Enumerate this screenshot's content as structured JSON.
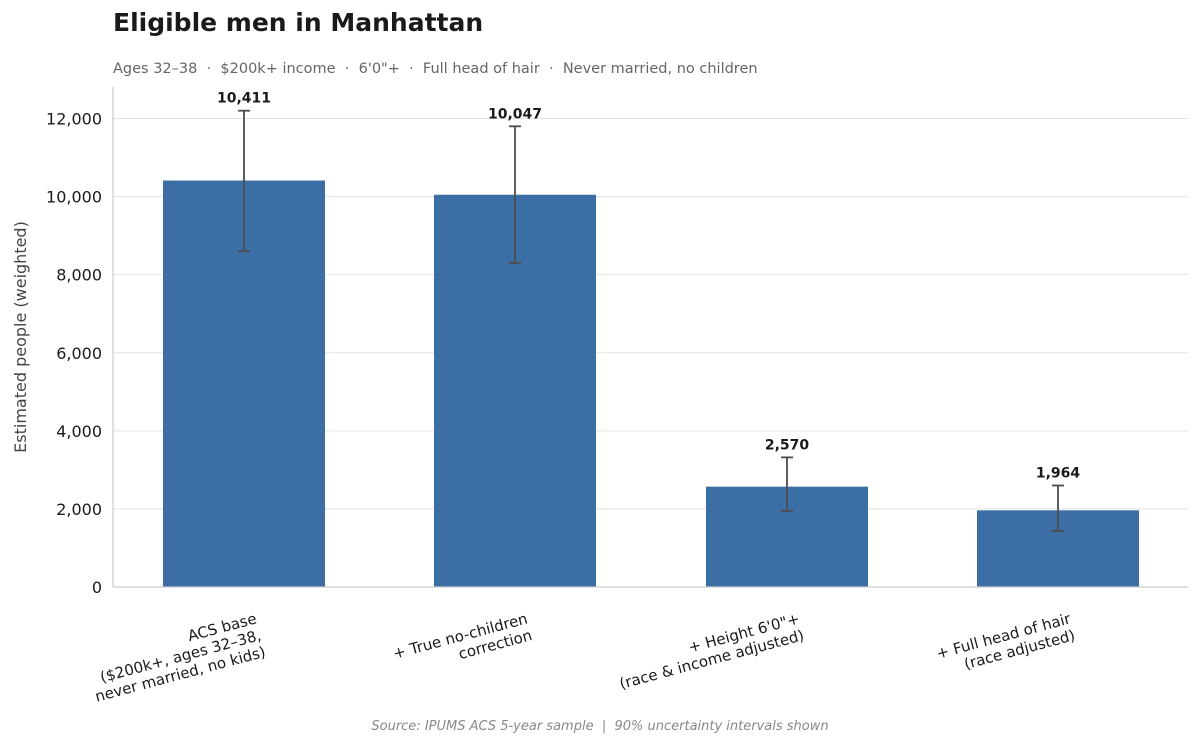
{
  "header": {
    "title": "Eligible men in Manhattan",
    "subtitle": "Ages 32–38  ·  $200k+ income  ·  6'0\"+  ·  Full head of hair  ·  Never married, no children"
  },
  "footer": {
    "source": "Source: IPUMS ACS 5-year sample  |  90% uncertainty intervals shown"
  },
  "colors": {
    "bar": "#3b6ea5",
    "errorbar": "#4d4d4d",
    "grid": "#e3e3e3",
    "axis": "#cccccc"
  },
  "chart_data": {
    "type": "bar",
    "title": "Eligible men in Manhattan",
    "subtitle": "Ages 32–38  ·  $200k+ income  ·  6'0\"+  ·  Full head of hair  ·  Never married, no children",
    "xlabel": "",
    "ylabel": "Estimated people (weighted)",
    "ylim": [
      0,
      12800
    ],
    "yticks": [
      0,
      2000,
      4000,
      6000,
      8000,
      10000,
      12000
    ],
    "ytick_labels": [
      "0",
      "2,000",
      "4,000",
      "6,000",
      "8,000",
      "10,000",
      "12,000"
    ],
    "grid": true,
    "legend": "none",
    "categories": [
      [
        "ACS base",
        "($200k+, ages 32–38,",
        "never married, no kids)"
      ],
      [
        "+ True no-children",
        "correction"
      ],
      [
        "+ Height 6'0\"+",
        "(race & income adjusted)"
      ],
      [
        "+ Full head of hair",
        "(race adjusted)"
      ]
    ],
    "values": [
      10411,
      10047,
      2570,
      1964
    ],
    "value_labels": [
      "10,411",
      "10,047",
      "2,570",
      "1,964"
    ],
    "error_low": [
      8600,
      8300,
      1950,
      1430
    ],
    "error_high": [
      12200,
      11800,
      3320,
      2600
    ]
  }
}
